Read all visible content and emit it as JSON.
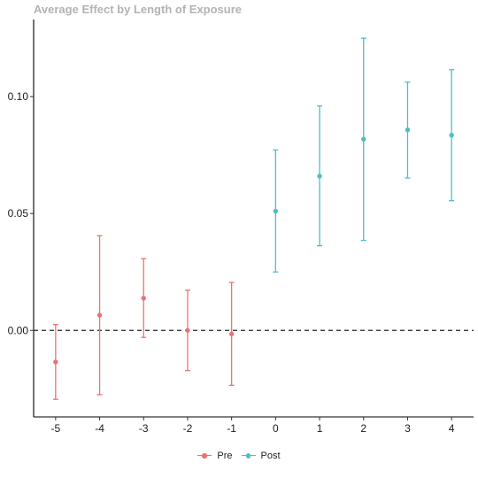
{
  "chart_data": {
    "type": "scatter",
    "title": "Average Effect by Length of Exposure",
    "xlabel": "",
    "ylabel": "",
    "x_ticks": [
      -5,
      -4,
      -3,
      -2,
      -1,
      0,
      1,
      2,
      3,
      4
    ],
    "y_ticks": [
      0.0,
      0.05,
      0.1
    ],
    "y_tick_labels": [
      "0.00",
      "0.05",
      "0.10"
    ],
    "xlim": [
      -5.5,
      4.5
    ],
    "ylim": [
      -0.037,
      0.133
    ],
    "reference_line": {
      "y": 0,
      "style": "dashed"
    },
    "grid": false,
    "legend_position": "bottom",
    "series": [
      {
        "name": "Pre",
        "color": "#e8756f",
        "points": [
          {
            "x": -5,
            "y": -0.0135,
            "lower": -0.0295,
            "upper": 0.0025
          },
          {
            "x": -4,
            "y": 0.0065,
            "lower": -0.0275,
            "upper": 0.0405
          },
          {
            "x": -3,
            "y": 0.0138,
            "lower": -0.003,
            "upper": 0.0307
          },
          {
            "x": -2,
            "y": 0.0,
            "lower": -0.0172,
            "upper": 0.0172
          },
          {
            "x": -1,
            "y": -0.0015,
            "lower": -0.0235,
            "upper": 0.0205
          }
        ]
      },
      {
        "name": "Post",
        "color": "#4fbec4",
        "points": [
          {
            "x": 0,
            "y": 0.051,
            "lower": 0.025,
            "upper": 0.0772
          },
          {
            "x": 1,
            "y": 0.066,
            "lower": 0.0362,
            "upper": 0.096
          },
          {
            "x": 2,
            "y": 0.0818,
            "lower": 0.0385,
            "upper": 0.125
          },
          {
            "x": 3,
            "y": 0.0858,
            "lower": 0.0652,
            "upper": 0.1062
          },
          {
            "x": 4,
            "y": 0.0835,
            "lower": 0.0555,
            "upper": 0.1115
          }
        ]
      }
    ]
  }
}
